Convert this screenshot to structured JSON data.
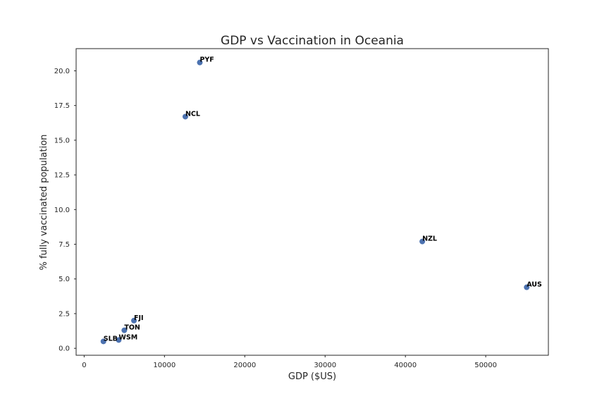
{
  "chart_data": {
    "type": "scatter",
    "title": "GDP vs Vaccination in Oceania",
    "xlabel": "GDP ($US)",
    "ylabel": "% fully vaccinated population",
    "xlim": [
      -1000,
      57800
    ],
    "ylim": [
      -0.5,
      21.6
    ],
    "xticks": [
      0,
      10000,
      20000,
      30000,
      40000,
      50000
    ],
    "xtick_labels": [
      "0",
      "10000",
      "20000",
      "30000",
      "40000",
      "50000"
    ],
    "yticks": [
      0.0,
      2.5,
      5.0,
      7.5,
      10.0,
      12.5,
      15.0,
      17.5,
      20.0
    ],
    "ytick_labels": [
      "0.0",
      "2.5",
      "5.0",
      "7.5",
      "10.0",
      "12.5",
      "15.0",
      "17.5",
      "20.0"
    ],
    "grid": false,
    "marker_color": "#4c72b0",
    "points": [
      {
        "label": "PYF",
        "x": 14400,
        "y": 20.6
      },
      {
        "label": "NCL",
        "x": 12600,
        "y": 16.7
      },
      {
        "label": "NZL",
        "x": 42100,
        "y": 7.7
      },
      {
        "label": "AUS",
        "x": 55100,
        "y": 4.4
      },
      {
        "label": "FJI",
        "x": 6200,
        "y": 2.0
      },
      {
        "label": "TON",
        "x": 5000,
        "y": 1.3
      },
      {
        "label": "WSM",
        "x": 4300,
        "y": 0.6
      },
      {
        "label": "SLB",
        "x": 2400,
        "y": 0.5
      }
    ]
  }
}
